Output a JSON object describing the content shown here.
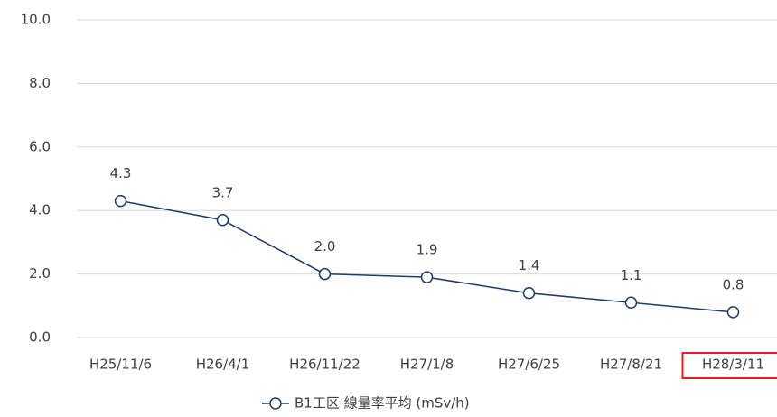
{
  "chart_data": {
    "type": "line",
    "categories": [
      "H25/11/6",
      "H26/4/1",
      "H26/11/22",
      "H27/1/8",
      "H27/6/25",
      "H27/8/21",
      "H28/3/11"
    ],
    "series": [
      {
        "name": "B1工区 線量率平均 (mSv/h)",
        "color": "#1f3b64",
        "values": [
          4.3,
          3.7,
          2.0,
          1.9,
          1.4,
          1.1,
          0.8
        ],
        "value_labels": [
          "4.3",
          "3.7",
          "2.0",
          "1.9",
          "1.4",
          "1.1",
          "0.8"
        ]
      }
    ],
    "ylim": [
      0,
      10
    ],
    "yticks": [
      {
        "value": 0,
        "label": "0.0"
      },
      {
        "value": 2,
        "label": "2.0"
      },
      {
        "value": 4,
        "label": "4.0"
      },
      {
        "value": 6,
        "label": "6.0"
      },
      {
        "value": 8,
        "label": "8.0"
      },
      {
        "value": 10,
        "label": "10.0"
      }
    ],
    "grid": true
  }
}
